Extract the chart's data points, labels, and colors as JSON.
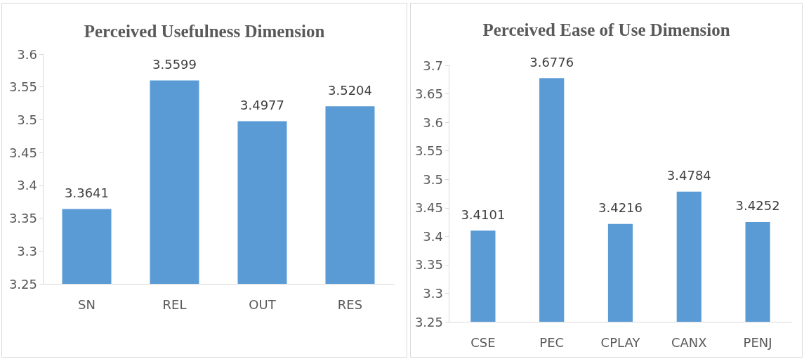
{
  "chart_data": [
    {
      "type": "bar",
      "title": "Perceived Usefulness Dimension",
      "categories": [
        "SN",
        "REL",
        "OUT",
        "RES"
      ],
      "values": [
        3.3641,
        3.5599,
        3.4977,
        3.5204
      ],
      "color": "#5b9bd5",
      "ylim": [
        3.25,
        3.6
      ],
      "yticks": [
        3.25,
        3.3,
        3.35,
        3.4,
        3.45,
        3.5,
        3.55,
        3.6
      ],
      "grid": false,
      "data_labels": true
    },
    {
      "type": "bar",
      "title": "Perceived Ease of Use Dimension",
      "categories": [
        "CSE",
        "PEC",
        "CPLAY",
        "CANX",
        "PENJ"
      ],
      "values": [
        3.4101,
        3.6776,
        3.4216,
        3.4784,
        3.4252
      ],
      "color": "#5b9bd5",
      "ylim": [
        3.25,
        3.7
      ],
      "yticks": [
        3.25,
        3.3,
        3.35,
        3.4,
        3.45,
        3.5,
        3.55,
        3.6,
        3.65,
        3.7
      ],
      "grid": false,
      "data_labels": true
    }
  ]
}
